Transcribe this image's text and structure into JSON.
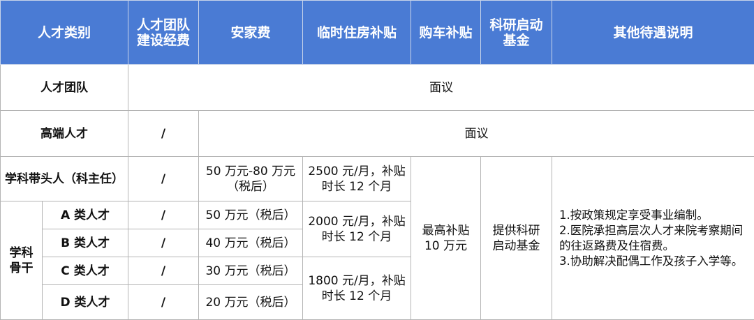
{
  "header": [
    "人才类别",
    "人才团队\n建设经费",
    "安家费",
    "临时住房补贴",
    "购车补贴",
    "科研启动\n基金",
    "其他待遇说明"
  ],
  "rows": {
    "team": {
      "label": "人才团队",
      "value": "面议"
    },
    "high_end": {
      "label": "高端人才",
      "fund": "/",
      "value": "面议"
    },
    "leader": {
      "label": "学科带头人（科主任）",
      "fund": "/",
      "settle": "50 万元-80 万元\n（税后）",
      "housing": "2500 元/月，补贴\n时长 12 个月"
    },
    "backbone": {
      "label": "学科\n骨干",
      "items": [
        {
          "label": "A 类人才",
          "fund": "/",
          "settle": "50 万元（税后）"
        },
        {
          "label": "B 类人才",
          "fund": "/",
          "settle": "40 万元（税后）"
        },
        {
          "label": "C 类人才",
          "fund": "/",
          "settle": "30 万元（税后）"
        },
        {
          "label": "D 类人才",
          "fund": "/",
          "settle": "20 万元（税后）"
        }
      ],
      "housing_ab": "2000 元/月，补贴\n时长 12 个月",
      "housing_cd": "1800 元/月，补贴\n时长 12 个月"
    },
    "car": "最高补贴\n10 万元",
    "research": "提供科研\n启动基金",
    "other": "1.按政策规定享受事业编制。\n2.医院承担高层次人才来院考察期间的往返路费及住宿费。\n3.协助解决配偶工作及孩子入学等。"
  },
  "colors": {
    "header_bg": "#4a7bd4",
    "border": "#b4b4b4"
  }
}
